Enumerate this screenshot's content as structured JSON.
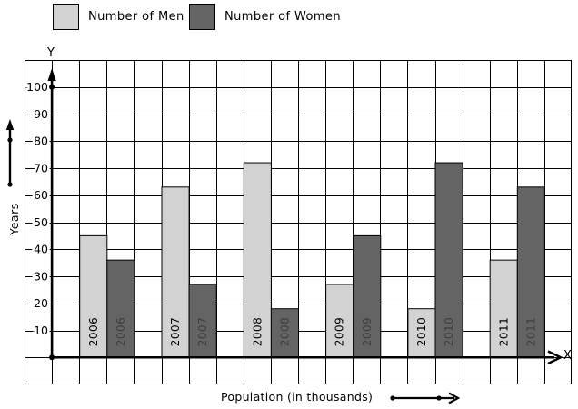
{
  "legend": {
    "men_label": "Number of Men",
    "women_label": "Number of Women"
  },
  "axes": {
    "y_letter": "Y",
    "x_letter": "X",
    "y_title": "Years",
    "x_title": "Population (in thousands)"
  },
  "colors": {
    "men_bar": "#d2d2d2",
    "women_bar": "#646464",
    "bar_outline": "#000000",
    "grid": "#000000",
    "axis": "#000000",
    "bar_label_on_men": "#000000",
    "bar_label_on_women": "#3d3d3d",
    "tick_label": "#000000"
  },
  "chart_data": {
    "type": "bar",
    "categories": [
      "2006",
      "2007",
      "2008",
      "2009",
      "2010",
      "2011"
    ],
    "series": [
      {
        "name": "Number of Men",
        "color": "#d2d2d2",
        "values": [
          45,
          63,
          72,
          27,
          18,
          36
        ]
      },
      {
        "name": "Number of Women",
        "color": "#646464",
        "values": [
          36,
          27,
          18,
          45,
          72,
          63
        ]
      }
    ],
    "title": "",
    "xlabel": "Population (in thousands)",
    "ylabel": "Years",
    "y_ticks": [
      10,
      20,
      30,
      40,
      50,
      60,
      70,
      80,
      90,
      100
    ],
    "ylim": [
      0,
      110
    ],
    "grid": true,
    "legend_position": "top"
  }
}
